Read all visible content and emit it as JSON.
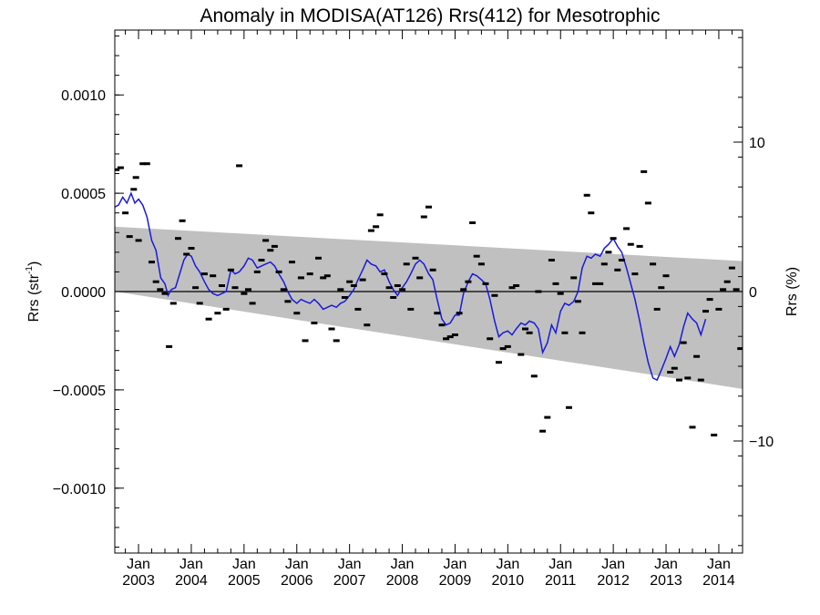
{
  "chart_data": {
    "type": "scatter",
    "title": "Anomaly in MODISA(AT126) Rrs(412) for Mesotrophic",
    "ylabel_left": "Rrs (str",
    "ylabel_left_sup": "-1",
    "ylabel_left_close": ")",
    "ylabel_right": "Rrs (%)",
    "xlim": [
      2002.55,
      2014.45
    ],
    "ylim_left": [
      -0.00133,
      0.00133
    ],
    "ylim_right": [
      -17.5,
      17.5
    ],
    "left_ticks": [
      {
        "v": 0.001,
        "label": "0.0010"
      },
      {
        "v": 0.0005,
        "label": "0.0005"
      },
      {
        "v": 0.0,
        "label": "0.0000"
      },
      {
        "v": -0.0005,
        "label": "−0.0005"
      },
      {
        "v": -0.001,
        "label": "−0.0010"
      }
    ],
    "right_ticks": [
      {
        "v": 10,
        "label": "10"
      },
      {
        "v": 0,
        "label": "0"
      },
      {
        "v": -10,
        "label": "−10"
      }
    ],
    "x_ticks": [
      {
        "v": 2003.0,
        "top": "Jan",
        "bottom": "2003"
      },
      {
        "v": 2004.0,
        "top": "Jan",
        "bottom": "2004"
      },
      {
        "v": 2005.0,
        "top": "Jan",
        "bottom": "2005"
      },
      {
        "v": 2006.0,
        "top": "Jan",
        "bottom": "2006"
      },
      {
        "v": 2007.0,
        "top": "Jan",
        "bottom": "2007"
      },
      {
        "v": 2008.0,
        "top": "Jan",
        "bottom": "2008"
      },
      {
        "v": 2009.0,
        "top": "Jan",
        "bottom": "2009"
      },
      {
        "v": 2010.0,
        "top": "Jan",
        "bottom": "2010"
      },
      {
        "v": 2011.0,
        "top": "Jan",
        "bottom": "2011"
      },
      {
        "v": 2012.0,
        "top": "Jan",
        "bottom": "2012"
      },
      {
        "v": 2013.0,
        "top": "Jan",
        "bottom": "2013"
      },
      {
        "v": 2014.0,
        "top": "Jan",
        "bottom": "2014"
      }
    ],
    "band": {
      "start": {
        "x": 2002.55,
        "upper": 0.00033,
        "lower": 0.0
      },
      "end": {
        "x": 2014.45,
        "upper": 0.000155,
        "lower": -0.000495
      }
    },
    "zero_line": 0.0,
    "scatter": [
      [
        2002.58,
        0.00062
      ],
      [
        2002.66,
        0.00063
      ],
      [
        2002.75,
        0.0004
      ],
      [
        2002.83,
        0.00028
      ],
      [
        2002.91,
        0.00052
      ],
      [
        2002.95,
        0.00058
      ],
      [
        2003.0,
        0.00026
      ],
      [
        2003.08,
        0.00065
      ],
      [
        2003.16,
        0.00065
      ],
      [
        2003.25,
        0.00015
      ],
      [
        2003.33,
        5e-05
      ],
      [
        2003.41,
        1e-05
      ],
      [
        2003.5,
        -1e-05
      ],
      [
        2003.58,
        -0.00028
      ],
      [
        2003.66,
        -6e-05
      ],
      [
        2003.75,
        0.00027
      ],
      [
        2003.83,
        0.00036
      ],
      [
        2003.91,
        0.00019
      ],
      [
        2004.0,
        0.00022
      ],
      [
        2004.08,
        2e-05
      ],
      [
        2004.16,
        -6e-05
      ],
      [
        2004.25,
        9e-05
      ],
      [
        2004.33,
        -0.00014
      ],
      [
        2004.41,
        8e-05
      ],
      [
        2004.5,
        -0.00011
      ],
      [
        2004.58,
        3e-05
      ],
      [
        2004.66,
        -9e-05
      ],
      [
        2004.75,
        0.00011
      ],
      [
        2004.83,
        2e-05
      ],
      [
        2004.91,
        0.00064
      ],
      [
        2005.0,
        -1e-05
      ],
      [
        2005.08,
        1e-05
      ],
      [
        2005.16,
        -6e-05
      ],
      [
        2005.25,
        0.0001
      ],
      [
        2005.33,
        0.00016
      ],
      [
        2005.41,
        0.00026
      ],
      [
        2005.5,
        0.00021
      ],
      [
        2005.58,
        0.00023
      ],
      [
        2005.66,
        0.0001
      ],
      [
        2005.75,
        1e-05
      ],
      [
        2005.83,
        -5e-05
      ],
      [
        2005.91,
        0.00015
      ],
      [
        2006.0,
        -0.00011
      ],
      [
        2006.08,
        7e-05
      ],
      [
        2006.16,
        -0.00025
      ],
      [
        2006.25,
        9e-05
      ],
      [
        2006.33,
        -0.00016
      ],
      [
        2006.41,
        0.00017
      ],
      [
        2006.5,
        7e-05
      ],
      [
        2006.58,
        8e-05
      ],
      [
        2006.66,
        -0.00019
      ],
      [
        2006.75,
        -0.00025
      ],
      [
        2006.83,
        1e-05
      ],
      [
        2006.91,
        -3e-05
      ],
      [
        2007.0,
        5e-05
      ],
      [
        2007.08,
        3e-05
      ],
      [
        2007.16,
        -9e-05
      ],
      [
        2007.25,
        6e-05
      ],
      [
        2007.33,
        -0.00017
      ],
      [
        2007.41,
        0.00031
      ],
      [
        2007.5,
        0.00033
      ],
      [
        2007.58,
        0.00039
      ],
      [
        2007.66,
        9e-05
      ],
      [
        2007.75,
        2e-05
      ],
      [
        2007.83,
        -3e-05
      ],
      [
        2007.91,
        3e-05
      ],
      [
        2008.0,
        1e-05
      ],
      [
        2008.08,
        0.00014
      ],
      [
        2008.16,
        -9e-05
      ],
      [
        2008.25,
        0.00017
      ],
      [
        2008.33,
        7e-05
      ],
      [
        2008.41,
        0.00038
      ],
      [
        2008.5,
        0.00043
      ],
      [
        2008.58,
        0.00011
      ],
      [
        2008.66,
        -0.00011
      ],
      [
        2008.75,
        -0.00017
      ],
      [
        2008.83,
        -0.00024
      ],
      [
        2008.91,
        -0.00023
      ],
      [
        2009.0,
        -0.00022
      ],
      [
        2009.08,
        -0.00011
      ],
      [
        2009.16,
        1e-05
      ],
      [
        2009.25,
        5e-05
      ],
      [
        2009.33,
        0.00035
      ],
      [
        2009.41,
        0.00018
      ],
      [
        2009.5,
        0.00014
      ],
      [
        2009.58,
        4e-05
      ],
      [
        2009.66,
        -0.00024
      ],
      [
        2009.75,
        -2e-05
      ],
      [
        2009.83,
        -0.00036
      ],
      [
        2009.91,
        -0.00029
      ],
      [
        2010.0,
        -0.00028
      ],
      [
        2010.08,
        2e-05
      ],
      [
        2010.16,
        3e-05
      ],
      [
        2010.25,
        -0.00032
      ],
      [
        2010.33,
        -0.00019
      ],
      [
        2010.41,
        -0.00021
      ],
      [
        2010.5,
        -0.00043
      ],
      [
        2010.58,
        0.0
      ],
      [
        2010.66,
        -0.00071
      ],
      [
        2010.75,
        -0.00064
      ],
      [
        2010.83,
        0.00016
      ],
      [
        2010.91,
        4e-05
      ],
      [
        2011.0,
        -1e-05
      ],
      [
        2011.08,
        -0.00021
      ],
      [
        2011.16,
        -0.00059
      ],
      [
        2011.25,
        7e-05
      ],
      [
        2011.33,
        -5e-05
      ],
      [
        2011.41,
        -0.00021
      ],
      [
        2011.5,
        0.00049
      ],
      [
        2011.58,
        0.0004
      ],
      [
        2011.66,
        4e-05
      ],
      [
        2011.75,
        4e-05
      ],
      [
        2011.83,
        0.00014
      ],
      [
        2011.91,
        0.0002
      ],
      [
        2012.0,
        0.00027
      ],
      [
        2012.08,
        0.00011
      ],
      [
        2012.16,
        0.00016
      ],
      [
        2012.25,
        0.00032
      ],
      [
        2012.33,
        0.00024
      ],
      [
        2012.41,
        9e-05
      ],
      [
        2012.5,
        0.00023
      ],
      [
        2012.58,
        0.00061
      ],
      [
        2012.66,
        0.00045
      ],
      [
        2012.75,
        0.00014
      ],
      [
        2012.83,
        -9e-05
      ],
      [
        2012.91,
        2e-05
      ],
      [
        2013.0,
        8e-05
      ],
      [
        2013.08,
        -0.00041
      ],
      [
        2013.16,
        -0.00039
      ],
      [
        2013.25,
        -0.00045
      ],
      [
        2013.33,
        -0.00026
      ],
      [
        2013.41,
        -0.00044
      ],
      [
        2013.5,
        -0.00069
      ],
      [
        2013.58,
        -0.00033
      ],
      [
        2013.66,
        -0.00045
      ],
      [
        2013.75,
        -0.0001
      ],
      [
        2013.83,
        -4e-05
      ],
      [
        2013.91,
        -0.00073
      ],
      [
        2014.0,
        -9e-05
      ],
      [
        2014.08,
        1e-05
      ],
      [
        2014.16,
        5e-05
      ],
      [
        2014.25,
        0.00012
      ],
      [
        2014.33,
        1e-05
      ],
      [
        2014.41,
        -0.00029
      ]
    ],
    "line": [
      [
        2002.55,
        0.00043
      ],
      [
        2002.62,
        0.00044
      ],
      [
        2002.7,
        0.00048
      ],
      [
        2002.78,
        0.00045
      ],
      [
        2002.86,
        0.0005
      ],
      [
        2002.93,
        0.00045
      ],
      [
        2003.0,
        0.00047
      ],
      [
        2003.08,
        0.00044
      ],
      [
        2003.16,
        0.00038
      ],
      [
        2003.25,
        0.00026
      ],
      [
        2003.33,
        0.00021
      ],
      [
        2003.42,
        7e-05
      ],
      [
        2003.5,
        4e-05
      ],
      [
        2003.56,
        -2e-05
      ],
      [
        2003.62,
        1e-05
      ],
      [
        2003.7,
        2e-05
      ],
      [
        2003.78,
        9e-05
      ],
      [
        2003.86,
        0.00016
      ],
      [
        2003.93,
        0.00019
      ],
      [
        2004.0,
        0.00018
      ],
      [
        2004.08,
        0.00013
      ],
      [
        2004.16,
        0.0001
      ],
      [
        2004.25,
        5e-05
      ],
      [
        2004.33,
        1e-05
      ],
      [
        2004.41,
        -1e-05
      ],
      [
        2004.5,
        -2e-05
      ],
      [
        2004.58,
        -1e-05
      ],
      [
        2004.66,
        0.0
      ],
      [
        2004.75,
        0.00011
      ],
      [
        2004.83,
        9e-05
      ],
      [
        2004.91,
        0.0001
      ],
      [
        2005.0,
        0.00013
      ],
      [
        2005.08,
        0.00017
      ],
      [
        2005.16,
        0.00016
      ],
      [
        2005.25,
        0.00012
      ],
      [
        2005.33,
        0.00013
      ],
      [
        2005.41,
        0.00014
      ],
      [
        2005.5,
        0.00015
      ],
      [
        2005.58,
        0.00013
      ],
      [
        2005.66,
        9e-05
      ],
      [
        2005.75,
        5e-05
      ],
      [
        2005.83,
        0.0
      ],
      [
        2005.91,
        -4e-05
      ],
      [
        2006.0,
        -6e-05
      ],
      [
        2006.08,
        -4e-05
      ],
      [
        2006.16,
        -5e-05
      ],
      [
        2006.25,
        -6e-05
      ],
      [
        2006.33,
        -4e-05
      ],
      [
        2006.41,
        -6e-05
      ],
      [
        2006.5,
        -9e-05
      ],
      [
        2006.58,
        -8e-05
      ],
      [
        2006.66,
        -7e-05
      ],
      [
        2006.75,
        -8e-05
      ],
      [
        2006.83,
        -6e-05
      ],
      [
        2006.91,
        -5e-05
      ],
      [
        2007.0,
        -2e-05
      ],
      [
        2007.08,
        1e-05
      ],
      [
        2007.16,
        6e-05
      ],
      [
        2007.25,
        0.00011
      ],
      [
        2007.33,
        0.00016
      ],
      [
        2007.41,
        0.00014
      ],
      [
        2007.5,
        0.00013
      ],
      [
        2007.58,
        0.0001
      ],
      [
        2007.66,
        0.00011
      ],
      [
        2007.75,
        5e-05
      ],
      [
        2007.83,
        1e-05
      ],
      [
        2007.91,
        -2e-05
      ],
      [
        2008.0,
        2e-05
      ],
      [
        2008.08,
        5e-05
      ],
      [
        2008.16,
        9e-05
      ],
      [
        2008.25,
        0.00014
      ],
      [
        2008.33,
        0.00016
      ],
      [
        2008.41,
        0.00014
      ],
      [
        2008.5,
        9e-05
      ],
      [
        2008.58,
        6e-05
      ],
      [
        2008.66,
        -4e-05
      ],
      [
        2008.75,
        -0.00014
      ],
      [
        2008.83,
        -0.00017
      ],
      [
        2008.91,
        -0.00016
      ],
      [
        2009.0,
        -0.00012
      ],
      [
        2009.08,
        -0.00012
      ],
      [
        2009.16,
        -1e-05
      ],
      [
        2009.25,
        5e-05
      ],
      [
        2009.33,
        9e-05
      ],
      [
        2009.41,
        8e-05
      ],
      [
        2009.5,
        6e-05
      ],
      [
        2009.58,
        4e-05
      ],
      [
        2009.66,
        -4e-05
      ],
      [
        2009.75,
        -0.00015
      ],
      [
        2009.83,
        -0.00023
      ],
      [
        2009.91,
        -0.00021
      ],
      [
        2010.0,
        -0.0002
      ],
      [
        2010.08,
        -0.00022
      ],
      [
        2010.16,
        -0.00019
      ],
      [
        2010.25,
        -0.00016
      ],
      [
        2010.33,
        -0.00017
      ],
      [
        2010.41,
        -0.00015
      ],
      [
        2010.5,
        -0.00016
      ],
      [
        2010.58,
        -0.00019
      ],
      [
        2010.66,
        -0.00031
      ],
      [
        2010.75,
        -0.00026
      ],
      [
        2010.83,
        -0.00017
      ],
      [
        2010.91,
        -0.00021
      ],
      [
        2011.0,
        -0.0001
      ],
      [
        2011.08,
        -6e-05
      ],
      [
        2011.16,
        -7e-05
      ],
      [
        2011.25,
        -5e-05
      ],
      [
        2011.33,
        0.0
      ],
      [
        2011.41,
        0.00012
      ],
      [
        2011.5,
        0.00018
      ],
      [
        2011.58,
        0.00017
      ],
      [
        2011.66,
        0.00019
      ],
      [
        2011.75,
        0.00018
      ],
      [
        2011.83,
        0.00022
      ],
      [
        2011.91,
        0.00024
      ],
      [
        2012.0,
        0.00027
      ],
      [
        2012.08,
        0.00023
      ],
      [
        2012.16,
        0.0002
      ],
      [
        2012.25,
        0.00012
      ],
      [
        2012.33,
        4e-05
      ],
      [
        2012.41,
        -4e-05
      ],
      [
        2012.5,
        -0.00015
      ],
      [
        2012.58,
        -0.00026
      ],
      [
        2012.66,
        -0.00036
      ],
      [
        2012.75,
        -0.00044
      ],
      [
        2012.83,
        -0.00045
      ],
      [
        2012.91,
        -0.0004
      ],
      [
        2013.0,
        -0.00034
      ],
      [
        2013.08,
        -0.00028
      ],
      [
        2013.16,
        -0.00033
      ],
      [
        2013.25,
        -0.00027
      ],
      [
        2013.33,
        -0.00018
      ],
      [
        2013.41,
        -0.00011
      ],
      [
        2013.5,
        -0.00014
      ],
      [
        2013.58,
        -0.00016
      ],
      [
        2013.66,
        -0.00022
      ],
      [
        2013.75,
        -0.00014
      ]
    ],
    "colors": {
      "band": "#c0c0c0",
      "line": "#1a1adb",
      "marker": "#000000",
      "axis": "#000000"
    }
  }
}
